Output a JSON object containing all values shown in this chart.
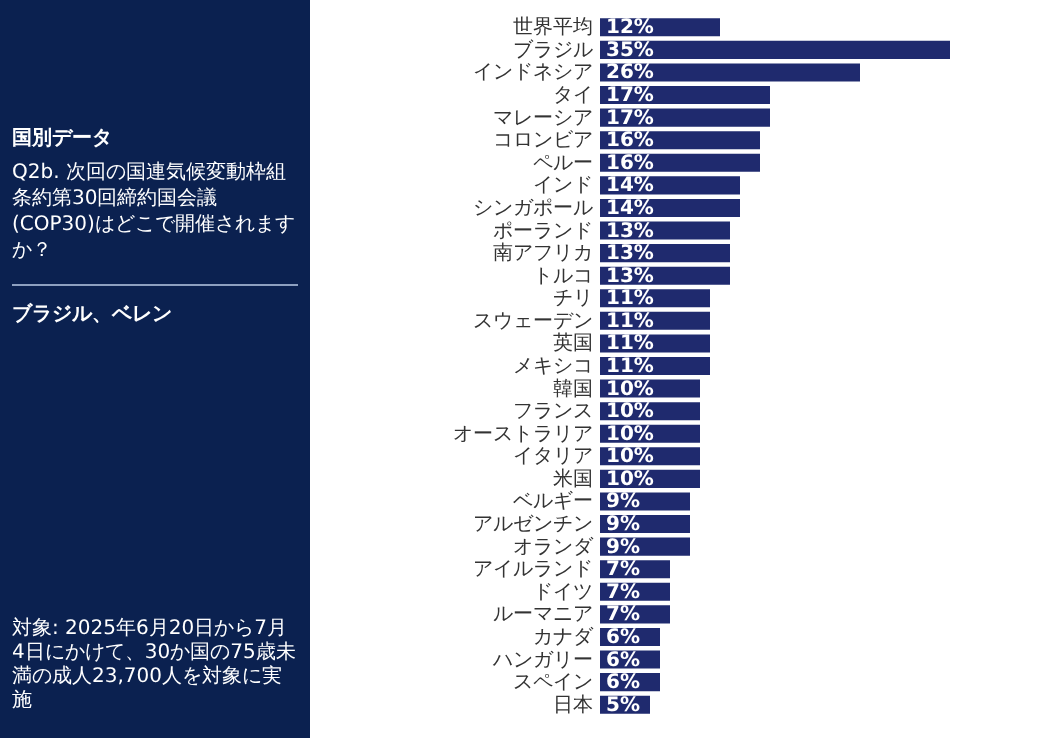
{
  "chart_data": {
    "type": "bar",
    "orientation": "horizontal",
    "title": "国別データ",
    "subtitle": "Q2b. 次回の国連気候変動枠組条約第30回締約国会議(COP30)はどこで開催されますか？",
    "annotations": [
      "ブラジル、ベレン",
      "対象: 2025年6月20日から7月4日にかけて、30か国の75歳未満の成人23,700人を対象に実施"
    ],
    "categories": [
      "世界平均",
      "ブラジル",
      "インドネシア",
      "タイ",
      "マレーシア",
      "コロンビア",
      "ペルー",
      "インド",
      "シンガポール",
      "ポーランド",
      "南アフリカ",
      "トルコ",
      "チリ",
      "スウェーデン",
      "英国",
      "メキシコ",
      "韓国",
      "フランス",
      "オーストラリア",
      "イタリア",
      "米国",
      "ベルギー",
      "アルゼンチン",
      "オランダ",
      "アイルランド",
      "ドイツ",
      "ルーマニア",
      "カナダ",
      "ハンガリー",
      "スペイン",
      "日本"
    ],
    "values": [
      12,
      35,
      26,
      17,
      17,
      16,
      16,
      14,
      14,
      13,
      13,
      13,
      11,
      11,
      11,
      11,
      10,
      10,
      10,
      10,
      10,
      9,
      9,
      9,
      7,
      7,
      7,
      6,
      6,
      6,
      5
    ],
    "value_labels": [
      "12%",
      "35%",
      "26%",
      "17%",
      "17%",
      "16%",
      "16%",
      "14%",
      "14%",
      "13%",
      "13%",
      "13%",
      "11%",
      "11%",
      "11%",
      "11%",
      "10%",
      "10%",
      "10%",
      "10%",
      "10%",
      "9%",
      "9%",
      "9%",
      "7%",
      "7%",
      "7%",
      "6%",
      "6%",
      "6%",
      "5%"
    ],
    "color": "#1f2a6e"
  }
}
